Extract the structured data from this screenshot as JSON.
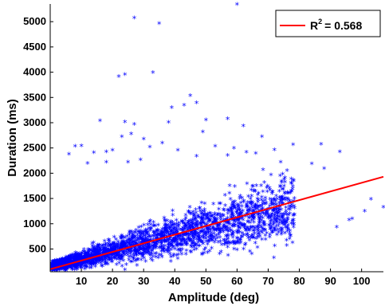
{
  "chart_data": {
    "type": "scatter",
    "xlabel": "Amplitude (deg)",
    "ylabel": "Duration (ms)",
    "xlim": [
      0,
      107
    ],
    "ylim": [
      50,
      5350
    ],
    "xticks": [
      10,
      20,
      30,
      40,
      50,
      60,
      70,
      80,
      90,
      100
    ],
    "yticks": [
      500,
      1000,
      1500,
      2000,
      2500,
      3000,
      3500,
      4000,
      4500,
      5000
    ],
    "grid": false,
    "legend_position": "top-right",
    "marker_color": "#0000ff",
    "fit_color": "#ff0000",
    "fit_line": {
      "x": [
        0,
        107
      ],
      "y": [
        100,
        1930
      ]
    },
    "legend": {
      "prefix": "R",
      "superscript": "2",
      "value": "= 0.568"
    },
    "outliers": [
      {
        "x": 27,
        "y": 5060
      },
      {
        "x": 35,
        "y": 4950
      },
      {
        "x": 60,
        "y": 5330
      },
      {
        "x": 33,
        "y": 3980
      },
      {
        "x": 22,
        "y": 3900
      },
      {
        "x": 24,
        "y": 3940
      },
      {
        "x": 45,
        "y": 3520
      },
      {
        "x": 47,
        "y": 3380
      },
      {
        "x": 43,
        "y": 3330
      },
      {
        "x": 39,
        "y": 3280
      },
      {
        "x": 16,
        "y": 3020
      },
      {
        "x": 24,
        "y": 3000
      },
      {
        "x": 38,
        "y": 2990
      },
      {
        "x": 27,
        "y": 2950
      },
      {
        "x": 50,
        "y": 3040
      },
      {
        "x": 57,
        "y": 3060
      },
      {
        "x": 62,
        "y": 2920
      },
      {
        "x": 49,
        "y": 2800
      },
      {
        "x": 68,
        "y": 2710
      },
      {
        "x": 23,
        "y": 2710
      },
      {
        "x": 26,
        "y": 2760
      },
      {
        "x": 30,
        "y": 2660
      },
      {
        "x": 8,
        "y": 2520
      },
      {
        "x": 10,
        "y": 2530
      },
      {
        "x": 6,
        "y": 2360
      },
      {
        "x": 14,
        "y": 2390
      },
      {
        "x": 18,
        "y": 2410
      },
      {
        "x": 20,
        "y": 2440
      },
      {
        "x": 32,
        "y": 2500
      },
      {
        "x": 36,
        "y": 2580
      },
      {
        "x": 41,
        "y": 2440
      },
      {
        "x": 53,
        "y": 2520
      },
      {
        "x": 59,
        "y": 2480
      },
      {
        "x": 63,
        "y": 2400
      },
      {
        "x": 72,
        "y": 2450
      },
      {
        "x": 78,
        "y": 2550
      },
      {
        "x": 87,
        "y": 2560
      },
      {
        "x": 93,
        "y": 2410
      },
      {
        "x": 57,
        "y": 2340
      },
      {
        "x": 66,
        "y": 2380
      },
      {
        "x": 18,
        "y": 2200
      },
      {
        "x": 12,
        "y": 2180
      },
      {
        "x": 25,
        "y": 2200
      },
      {
        "x": 29,
        "y": 2250
      },
      {
        "x": 47,
        "y": 2320
      },
      {
        "x": 74,
        "y": 2200
      },
      {
        "x": 84,
        "y": 2170
      },
      {
        "x": 88,
        "y": 2080
      },
      {
        "x": 107,
        "y": 1310
      },
      {
        "x": 101,
        "y": 1230
      },
      {
        "x": 96,
        "y": 1060
      },
      {
        "x": 92,
        "y": 920
      },
      {
        "x": 97,
        "y": 1080
      },
      {
        "x": 103,
        "y": 1470
      }
    ]
  }
}
